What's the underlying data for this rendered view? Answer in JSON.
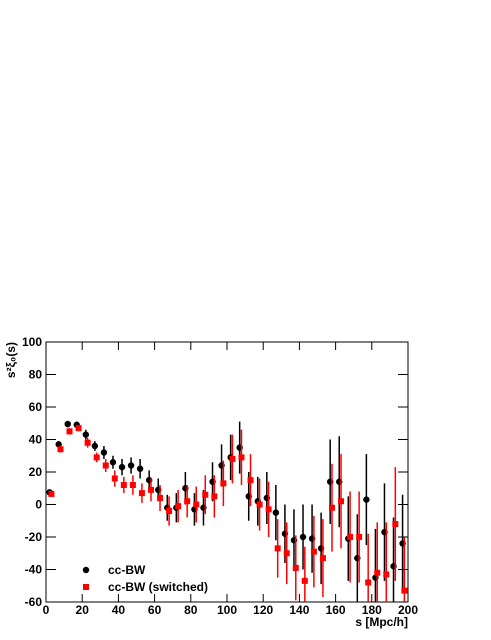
{
  "chart_data": {
    "type": "errorbar-scatter",
    "x_label": "s [Mpc/h]",
    "y_label": "s²ξ₀(s)",
    "xlim": [
      0,
      200
    ],
    "xticks": [
      0,
      20,
      40,
      60,
      80,
      100,
      120,
      140,
      160,
      180,
      200
    ],
    "ylim": [
      -60,
      100
    ],
    "yticks": [
      -60,
      -40,
      -20,
      0,
      20,
      40,
      60,
      80,
      100
    ],
    "legend": "lower-left",
    "series": [
      {
        "name": "cc-BW",
        "color": "#000000",
        "marker": "circle",
        "x": [
          2,
          7,
          12,
          17,
          22,
          27,
          32,
          37,
          42,
          47,
          52,
          57,
          62,
          67,
          72,
          77,
          82,
          87,
          92,
          97,
          102,
          107,
          112,
          117,
          122,
          127,
          132,
          137,
          142,
          147,
          152,
          157,
          162,
          167,
          172,
          177,
          182,
          187,
          192,
          197
        ],
        "values": [
          7.5,
          37,
          49.5,
          49,
          43,
          36,
          32,
          26,
          23,
          24,
          22,
          15,
          9,
          -2,
          -2,
          10,
          -3,
          -2,
          14,
          24,
          29,
          35,
          5,
          2,
          4,
          -5,
          -18,
          -22,
          -20,
          -21,
          -27,
          14,
          14,
          -21,
          -33,
          3,
          -45,
          -17,
          -38,
          -24
        ],
        "errors": [
          1,
          2,
          2,
          2,
          3,
          3,
          4,
          4,
          5,
          5,
          6,
          6,
          7,
          8,
          9,
          10,
          10,
          11,
          12,
          13,
          14,
          16,
          15,
          15,
          16,
          17,
          18,
          19,
          20,
          21,
          22,
          26,
          28,
          26,
          27,
          28,
          30,
          30,
          30,
          30
        ]
      },
      {
        "name": "cc-BW (switched)",
        "color": "#ff0000",
        "marker": "square",
        "x": [
          3,
          8,
          13,
          18,
          23,
          28,
          33,
          38,
          43,
          48,
          53,
          58,
          63,
          68,
          73,
          78,
          83,
          88,
          93,
          98,
          103,
          108,
          113,
          118,
          123,
          128,
          133,
          138,
          143,
          148,
          153,
          158,
          163,
          168,
          173,
          178,
          183,
          188,
          193,
          198
        ],
        "values": [
          6.5,
          34,
          45,
          47,
          38,
          29,
          24,
          16,
          12,
          12,
          7,
          9,
          4,
          -4,
          -1,
          2,
          0,
          6,
          5,
          13,
          28,
          29,
          15,
          0,
          -3,
          -27,
          -30,
          -39,
          -47,
          -29,
          -33,
          -2,
          2,
          -20,
          -20,
          -48,
          -42,
          -43,
          -12,
          -53
        ],
        "errors": [
          1,
          2,
          2,
          2,
          3,
          3,
          4,
          5,
          5,
          6,
          6,
          7,
          8,
          9,
          10,
          10,
          11,
          12,
          13,
          14,
          15,
          17,
          16,
          16,
          17,
          18,
          19,
          20,
          21,
          22,
          24,
          27,
          29,
          28,
          28,
          30,
          31,
          32,
          35,
          33
        ]
      }
    ]
  }
}
